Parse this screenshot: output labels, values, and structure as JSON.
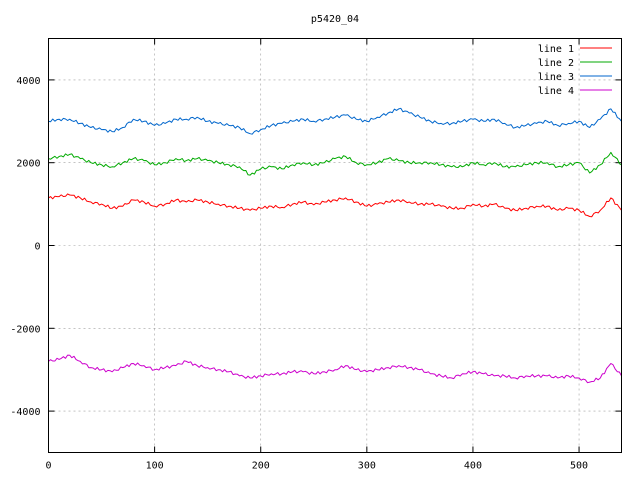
{
  "chart_data": {
    "type": "line",
    "title": "p5420_04",
    "xlabel": "",
    "ylabel": "",
    "xlim": [
      0,
      540
    ],
    "ylim": [
      -5000,
      5000
    ],
    "xticks": [
      0,
      100,
      200,
      300,
      400,
      500
    ],
    "yticks": [
      -4000,
      -2000,
      0,
      2000,
      4000
    ],
    "grid": true,
    "legend_position": "top-right",
    "series": [
      {
        "name": "line 1",
        "color": "#ff0000",
        "x": [
          0,
          10,
          20,
          30,
          40,
          50,
          60,
          70,
          80,
          90,
          100,
          110,
          120,
          130,
          140,
          150,
          160,
          170,
          180,
          190,
          200,
          210,
          220,
          230,
          240,
          250,
          260,
          270,
          280,
          290,
          300,
          310,
          320,
          330,
          340,
          350,
          360,
          370,
          380,
          390,
          400,
          410,
          420,
          430,
          440,
          450,
          460,
          470,
          480,
          490,
          500,
          510,
          520,
          530,
          540
        ],
        "y": [
          1150,
          1180,
          1220,
          1150,
          1050,
          1000,
          900,
          950,
          1100,
          1050,
          950,
          1000,
          1100,
          1050,
          1100,
          1050,
          1000,
          950,
          900,
          850,
          900,
          950,
          920,
          1000,
          1050,
          980,
          1050,
          1100,
          1150,
          1050,
          950,
          1000,
          1050,
          1100,
          1050,
          1000,
          1000,
          950,
          900,
          900,
          1000,
          950,
          1000,
          900,
          850,
          900,
          950,
          950,
          850,
          900,
          850,
          700,
          850,
          1150,
          850
        ]
      },
      {
        "name": "line 2",
        "color": "#00aa00",
        "x": [
          0,
          10,
          20,
          30,
          40,
          50,
          60,
          70,
          80,
          90,
          100,
          110,
          120,
          130,
          140,
          150,
          160,
          170,
          180,
          190,
          200,
          210,
          220,
          230,
          240,
          250,
          260,
          270,
          280,
          290,
          300,
          310,
          320,
          330,
          340,
          350,
          360,
          370,
          380,
          390,
          400,
          410,
          420,
          430,
          440,
          450,
          460,
          470,
          480,
          490,
          500,
          510,
          520,
          530,
          540
        ],
        "y": [
          2100,
          2150,
          2200,
          2100,
          2000,
          1950,
          1900,
          2000,
          2100,
          2050,
          1950,
          2000,
          2100,
          2050,
          2100,
          2050,
          2000,
          1950,
          1900,
          1700,
          1850,
          1900,
          1850,
          1950,
          2000,
          1950,
          2000,
          2100,
          2150,
          2000,
          1950,
          2000,
          2100,
          2050,
          2000,
          2000,
          2000,
          1950,
          1900,
          1900,
          2000,
          1950,
          2000,
          1900,
          1900,
          1950,
          2000,
          2000,
          1900,
          1950,
          2000,
          1750,
          1950,
          2250,
          1950
        ]
      },
      {
        "name": "line 3",
        "color": "#0066cc",
        "x": [
          0,
          10,
          20,
          30,
          40,
          50,
          60,
          70,
          80,
          90,
          100,
          110,
          120,
          130,
          140,
          150,
          160,
          170,
          180,
          190,
          200,
          210,
          220,
          230,
          240,
          250,
          260,
          270,
          280,
          290,
          300,
          310,
          320,
          330,
          340,
          350,
          360,
          370,
          380,
          390,
          400,
          410,
          420,
          430,
          440,
          450,
          460,
          470,
          480,
          490,
          500,
          510,
          520,
          530,
          540
        ],
        "y": [
          3000,
          3050,
          3050,
          2950,
          2850,
          2800,
          2750,
          2850,
          3050,
          3000,
          2900,
          2950,
          3050,
          3050,
          3100,
          3000,
          2950,
          2900,
          2850,
          2700,
          2800,
          2900,
          2950,
          3000,
          3050,
          3000,
          3050,
          3100,
          3150,
          3050,
          3000,
          3100,
          3200,
          3300,
          3200,
          3100,
          3000,
          2950,
          2950,
          3000,
          3050,
          3000,
          3050,
          2950,
          2850,
          2900,
          2950,
          3000,
          2900,
          2950,
          3000,
          2850,
          3050,
          3300,
          3000
        ]
      },
      {
        "name": "line 4",
        "color": "#cc00cc",
        "x": [
          0,
          10,
          20,
          30,
          40,
          50,
          60,
          70,
          80,
          90,
          100,
          110,
          120,
          130,
          140,
          150,
          160,
          170,
          180,
          190,
          200,
          210,
          220,
          230,
          240,
          250,
          260,
          270,
          280,
          290,
          300,
          310,
          320,
          330,
          340,
          350,
          360,
          370,
          380,
          390,
          400,
          410,
          420,
          430,
          440,
          450,
          460,
          470,
          480,
          490,
          500,
          510,
          520,
          530,
          540
        ],
        "y": [
          -2800,
          -2750,
          -2650,
          -2800,
          -2950,
          -3000,
          -3050,
          -2950,
          -2850,
          -2900,
          -3000,
          -2950,
          -2900,
          -2800,
          -2900,
          -2950,
          -3000,
          -3050,
          -3150,
          -3200,
          -3150,
          -3100,
          -3100,
          -3050,
          -3050,
          -3100,
          -3050,
          -3000,
          -2900,
          -3000,
          -3050,
          -3000,
          -2950,
          -2900,
          -2950,
          -3000,
          -3100,
          -3150,
          -3200,
          -3100,
          -3050,
          -3100,
          -3150,
          -3150,
          -3200,
          -3150,
          -3150,
          -3150,
          -3200,
          -3150,
          -3200,
          -3300,
          -3200,
          -2850,
          -3150
        ]
      }
    ]
  }
}
